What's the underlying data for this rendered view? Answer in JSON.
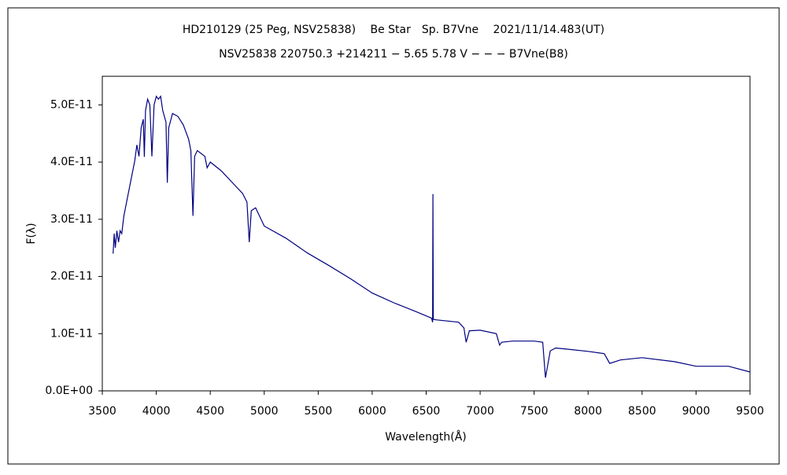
{
  "chart_data": {
    "type": "line",
    "title": "HD210129 (25 Peg, NSV25838)　 Be Star　Sp. B7Vne　 2021/11/14.483(UT)",
    "subtitle": "NSV25838 220750.3 +214211 − 5.65 5.78 V − − − B7Vne(B8)",
    "xlabel": "Wavelength(Å)",
    "ylabel": "F(λ)",
    "xlim": [
      3500,
      9500
    ],
    "xticks": [
      3500,
      4000,
      4500,
      5000,
      5500,
      6000,
      6500,
      7000,
      7500,
      8000,
      8500,
      9000,
      9500
    ],
    "ylim": [
      0,
      5.5e-11
    ],
    "yticks": [
      {
        "value": 0,
        "label": "0.0E+00"
      },
      {
        "value": 1e-11,
        "label": "1.0E-11"
      },
      {
        "value": 2e-11,
        "label": "2.0E-11"
      },
      {
        "value": 3e-11,
        "label": "3.0E-11"
      },
      {
        "value": 4e-11,
        "label": "4.0E-11"
      },
      {
        "value": 5e-11,
        "label": "5.0E-11"
      }
    ],
    "grid": false,
    "series": [
      {
        "color": "#000080",
        "x": [
          3600,
          3610,
          3620,
          3635,
          3650,
          3665,
          3680,
          3700,
          3750,
          3800,
          3820,
          3840,
          3860,
          3880,
          3889,
          3900,
          3920,
          3940,
          3959,
          3980,
          4000,
          4020,
          4040,
          4060,
          4090,
          4102,
          4115,
          4150,
          4200,
          4250,
          4300,
          4320,
          4340,
          4355,
          4380,
          4450,
          4471,
          4500,
          4600,
          4700,
          4800,
          4840,
          4861,
          4880,
          4920,
          5000,
          5200,
          5400,
          5500,
          5600,
          5800,
          6000,
          6200,
          6400,
          6550,
          6560,
          6563,
          6566,
          6600,
          6800,
          6850,
          6870,
          6900,
          7000,
          7150,
          7180,
          7200,
          7300,
          7500,
          7580,
          7605,
          7650,
          7700,
          7800,
          8000,
          8150,
          8200,
          8300,
          8500,
          8800,
          9000,
          9300,
          9500
        ],
        "values": [
          2.4e-11,
          2.75e-11,
          2.5e-11,
          2.8e-11,
          2.6e-11,
          2.8e-11,
          2.75e-11,
          3.06e-11,
          3.54e-11,
          4.02e-11,
          4.3e-11,
          4.1e-11,
          4.6e-11,
          4.75e-11,
          4.09e-11,
          4.9e-11,
          5.1e-11,
          5e-11,
          4.1e-11,
          5e-11,
          5.15e-11,
          5.1e-11,
          5.15e-11,
          4.9e-11,
          4.7e-11,
          3.64e-11,
          4.6e-11,
          4.85e-11,
          4.8e-11,
          4.65e-11,
          4.4e-11,
          4.2e-11,
          3.06e-11,
          4.1e-11,
          4.2e-11,
          4.1e-11,
          3.9e-11,
          4e-11,
          3.85e-11,
          3.65e-11,
          3.45e-11,
          3.3e-11,
          2.6e-11,
          3.15e-11,
          3.2e-11,
          2.88e-11,
          2.67e-11,
          2.41e-11,
          2.3e-11,
          2.19e-11,
          1.96e-11,
          1.71e-11,
          1.54e-11,
          1.39e-11,
          1.27e-11,
          1.2e-11,
          3.44e-11,
          1.25e-11,
          1.24e-11,
          1.2e-11,
          1.1e-11,
          8.5e-12,
          1.05e-11,
          1.06e-11,
          1e-11,
          8e-12,
          8.5e-12,
          8.7e-12,
          8.7e-12,
          8.5e-12,
          2.3e-12,
          7e-12,
          7.5e-12,
          7.3e-12,
          6.9e-12,
          6.5e-12,
          4.8e-12,
          5.4e-12,
          5.8e-12,
          5.1e-12,
          4.3e-12,
          4.3e-12,
          3.3e-12
        ]
      }
    ]
  }
}
